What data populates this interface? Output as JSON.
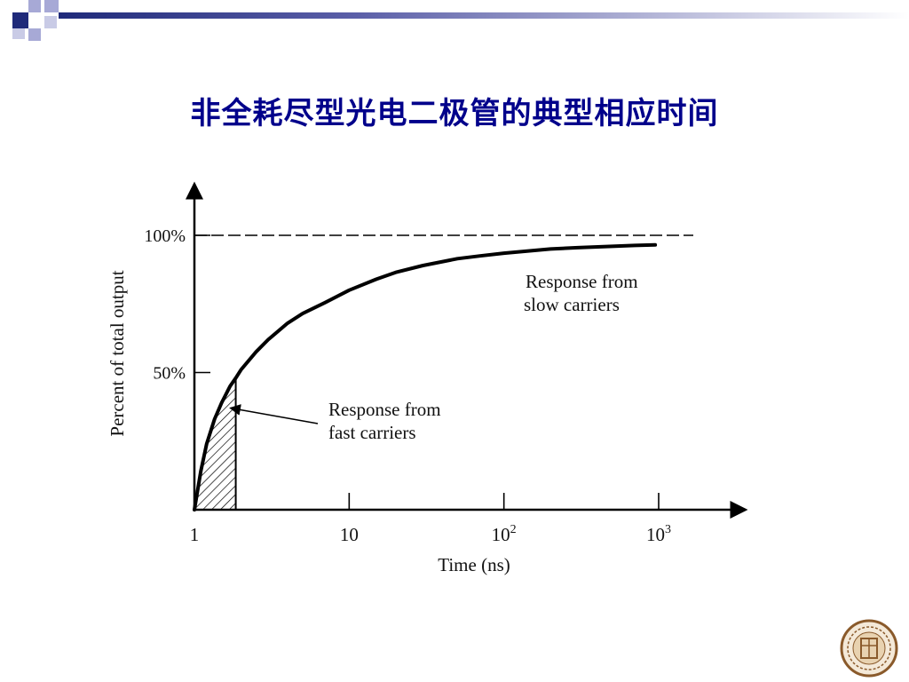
{
  "slide": {
    "title": "非全耗尽型光电二极管的典型相应时间"
  },
  "colors": {
    "title": "#00008b",
    "decor_dark": "#1f2a7a",
    "decor_light": "#a7a9d6",
    "curve": "#000000"
  },
  "chart_data": {
    "type": "line",
    "x_scale": "log",
    "xlim": [
      1,
      1000
    ],
    "ylim": [
      0,
      100
    ],
    "xlabel": "Time (ns)",
    "ylabel": "Percent of total output",
    "x_ticks": [
      {
        "value": 1,
        "base": "1",
        "exp": ""
      },
      {
        "value": 10,
        "base": "10",
        "exp": ""
      },
      {
        "value": 100,
        "base": "10",
        "exp": "2"
      },
      {
        "value": 1000,
        "base": "10",
        "exp": "3"
      }
    ],
    "y_ticks": [
      {
        "value": 50,
        "label": "50%"
      },
      {
        "value": 100,
        "label": "100%"
      }
    ],
    "reference_line": {
      "y": 100,
      "style": "dashed"
    },
    "series": [
      {
        "x": [
          1,
          1.1,
          1.2,
          1.35,
          1.5,
          1.7,
          1.85,
          2,
          2.5,
          3,
          4,
          5,
          7,
          10,
          15,
          20,
          30,
          50,
          70,
          100,
          200,
          300,
          500,
          700,
          950
        ],
        "y": [
          0,
          14,
          24,
          33,
          39,
          45,
          48,
          51,
          57.5,
          62,
          68,
          71.5,
          75.5,
          80,
          84,
          86.5,
          89,
          91.5,
          92.5,
          93.5,
          95,
          95.5,
          96,
          96.3,
          96.5
        ]
      }
    ],
    "shaded_region": {
      "x_from": 1,
      "x_to": 1.85,
      "pattern": "hatched"
    },
    "annotations": [
      {
        "lines": [
          "Response from",
          "slow carriers"
        ]
      },
      {
        "lines": [
          "Response from",
          "fast carriers"
        ],
        "arrow_to": {
          "x": 1.5,
          "y": 39
        }
      }
    ]
  }
}
